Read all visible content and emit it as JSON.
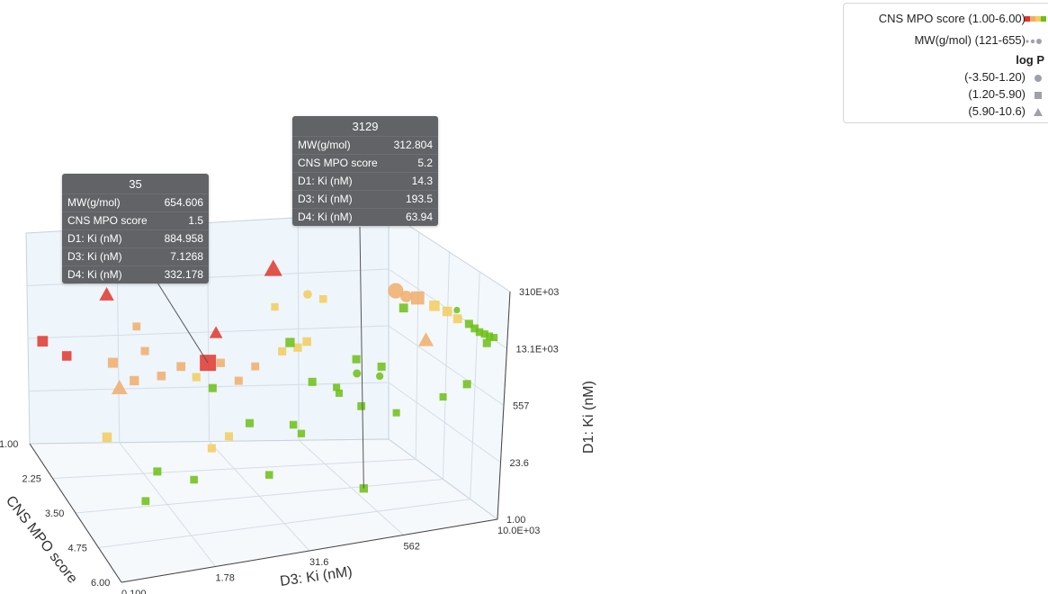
{
  "chart_data": {
    "type": "scatter",
    "axes": {
      "x": {
        "label": "D3: Ki (nM)",
        "scale": "log",
        "ticks": [
          "0.100",
          "1.78",
          "31.6",
          "562",
          "10.0E+03"
        ]
      },
      "y": {
        "label": "CNS MPO score",
        "range": [
          1.0,
          6.0
        ],
        "ticks": [
          "1.00",
          "2.25",
          "3.50",
          "4.75",
          "6.00"
        ]
      },
      "z": {
        "label": "D1: Ki (nM)",
        "scale": "log",
        "ticks": [
          "1.00",
          "23.6",
          "557",
          "13.1E+03",
          "310E+03"
        ]
      }
    },
    "legend": {
      "color": {
        "label": "CNS MPO score (1.00-6.00)",
        "colors": [
          "#e0352b",
          "#f0ad69",
          "#f2cd5a",
          "#6cbf13"
        ]
      },
      "size": {
        "label": "MW(g/mol) (121-655)"
      },
      "shape_title": "log P",
      "shapes": [
        {
          "label": "(-3.50-1.20)",
          "shape": "circle"
        },
        {
          "label": "(1.20-5.90)",
          "shape": "square"
        },
        {
          "label": "(5.90-10.6)",
          "shape": "triangle"
        }
      ]
    },
    "tooltips": [
      {
        "id": "35",
        "rows": [
          {
            "k": "MW(g/mol)",
            "v": "654.606"
          },
          {
            "k": "CNS MPO score",
            "v": "1.5"
          },
          {
            "k": "D1: Ki (nM)",
            "v": "884.958"
          },
          {
            "k": "D3: Ki (nM)",
            "v": "7.1268"
          },
          {
            "k": "D4: Ki (nM)",
            "v": "332.178"
          }
        ]
      },
      {
        "id": "3129",
        "rows": [
          {
            "k": "MW(g/mol)",
            "v": "312.804"
          },
          {
            "k": "CNS MPO score",
            "v": "5.2"
          },
          {
            "k": "D1: Ki (nM)",
            "v": "14.3"
          },
          {
            "k": "D3: Ki (nM)",
            "v": "193.5"
          },
          {
            "k": "D4: Ki (nM)",
            "v": "63.94"
          }
        ]
      }
    ],
    "points": [
      {
        "x": 7.1268,
        "y": 1.5,
        "z": 884.958,
        "mw": 654.606,
        "shape": "square"
      },
      {
        "x": 193.5,
        "y": 5.2,
        "z": 14.3,
        "mw": 312.804,
        "shape": "square"
      },
      {
        "x": 3.0,
        "y": 1.2,
        "z": 250000,
        "mw": 520,
        "shape": "triangle"
      },
      {
        "x": 40,
        "y": 1.1,
        "z": 280000,
        "mw": 540,
        "shape": "triangle"
      },
      {
        "x": 0.6,
        "y": 1.4,
        "z": 20000,
        "mw": 430,
        "shape": "triangle"
      },
      {
        "x": 9,
        "y": 1.4,
        "z": 5000,
        "mw": 380,
        "shape": "triangle"
      },
      {
        "x": 0.5,
        "y": 2.6,
        "z": 300,
        "mw": 470,
        "shape": "triangle"
      },
      {
        "x": 1500,
        "y": 2.6,
        "z": 20000,
        "mw": 450,
        "shape": "triangle"
      },
      {
        "x": 700,
        "y": 2.3,
        "z": 250000,
        "mw": 580,
        "shape": "circle"
      },
      {
        "x": 900,
        "y": 2.5,
        "z": 200000,
        "mw": 420,
        "shape": "circle"
      },
      {
        "x": 60,
        "y": 3.2,
        "z": 160000,
        "mw": 300,
        "shape": "circle"
      },
      {
        "x": 150,
        "y": 5.4,
        "z": 6000,
        "mw": 280,
        "shape": "circle"
      },
      {
        "x": 300,
        "y": 5.3,
        "z": 5000,
        "mw": 250,
        "shape": "circle"
      },
      {
        "x": 3000,
        "y": 4.6,
        "z": 160000,
        "mw": 210,
        "shape": "circle"
      },
      {
        "x": 1200,
        "y": 2.6,
        "z": 200000,
        "mw": 520,
        "shape": "square"
      },
      {
        "x": 1800,
        "y": 3.0,
        "z": 150000,
        "mw": 400,
        "shape": "square"
      },
      {
        "x": 2500,
        "y": 3.2,
        "z": 120000,
        "mw": 360,
        "shape": "square"
      },
      {
        "x": 3200,
        "y": 3.8,
        "z": 90000,
        "mw": 330,
        "shape": "square"
      },
      {
        "x": 4200,
        "y": 4.9,
        "z": 80000,
        "mw": 300,
        "shape": "square"
      },
      {
        "x": 4900,
        "y": 5.2,
        "z": 65000,
        "mw": 290,
        "shape": "square"
      },
      {
        "x": 5600,
        "y": 5.5,
        "z": 55000,
        "mw": 280,
        "shape": "square"
      },
      {
        "x": 6500,
        "y": 5.6,
        "z": 50000,
        "mw": 270,
        "shape": "square"
      },
      {
        "x": 7500,
        "y": 5.7,
        "z": 45000,
        "mw": 265,
        "shape": "square"
      },
      {
        "x": 8600,
        "y": 5.8,
        "z": 42000,
        "mw": 260,
        "shape": "square"
      },
      {
        "x": 7000,
        "y": 5.4,
        "z": 30000,
        "mw": 300,
        "shape": "square"
      },
      {
        "x": 600,
        "y": 5.3,
        "z": 180000,
        "mw": 330,
        "shape": "square"
      },
      {
        "x": 300,
        "y": 5.6,
        "z": 9000,
        "mw": 300,
        "shape": "square"
      },
      {
        "x": 4000,
        "y": 5.0,
        "z": 3000,
        "mw": 300,
        "shape": "square"
      },
      {
        "x": 0.12,
        "y": 1.4,
        "z": 800,
        "mw": 410,
        "shape": "square"
      },
      {
        "x": 0.2,
        "y": 1.6,
        "z": 500,
        "mw": 360,
        "shape": "square"
      },
      {
        "x": 0.5,
        "y": 2.2,
        "z": 800,
        "mw": 380,
        "shape": "square"
      },
      {
        "x": 0.8,
        "y": 2.4,
        "z": 400,
        "mw": 350,
        "shape": "square"
      },
      {
        "x": 1.1,
        "y": 2.3,
        "z": 2000,
        "mw": 300,
        "shape": "square"
      },
      {
        "x": 1.5,
        "y": 2.6,
        "z": 700,
        "mw": 320,
        "shape": "square"
      },
      {
        "x": 2.6,
        "y": 2.5,
        "z": 1200,
        "mw": 330,
        "shape": "square"
      },
      {
        "x": 3.5,
        "y": 2.8,
        "z": 900,
        "mw": 300,
        "shape": "square"
      },
      {
        "x": 1.0,
        "y": 2.0,
        "z": 6000,
        "mw": 290,
        "shape": "square"
      },
      {
        "x": 8.0,
        "y": 2.2,
        "z": 1500,
        "mw": 310,
        "shape": "square"
      },
      {
        "x": 12,
        "y": 2.4,
        "z": 700,
        "mw": 300,
        "shape": "square"
      },
      {
        "x": 17,
        "y": 2.7,
        "z": 2000,
        "mw": 290,
        "shape": "square"
      },
      {
        "x": 25,
        "y": 3.2,
        "z": 70000,
        "mw": 270,
        "shape": "square"
      },
      {
        "x": 32,
        "y": 3.0,
        "z": 6000,
        "mw": 300,
        "shape": "square"
      },
      {
        "x": 45,
        "y": 3.3,
        "z": 9000,
        "mw": 310,
        "shape": "square"
      },
      {
        "x": 55,
        "y": 3.5,
        "z": 14000,
        "mw": 320,
        "shape": "square"
      },
      {
        "x": 80,
        "y": 3.8,
        "z": 160000,
        "mw": 280,
        "shape": "square"
      },
      {
        "x": 0.3,
        "y": 3.0,
        "z": 30,
        "mw": 360,
        "shape": "square"
      },
      {
        "x": 0.7,
        "y": 4.2,
        "z": 20,
        "mw": 300,
        "shape": "square"
      },
      {
        "x": 0.4,
        "y": 4.7,
        "z": 8,
        "mw": 290,
        "shape": "square"
      },
      {
        "x": 4,
        "y": 3.6,
        "z": 40,
        "mw": 300,
        "shape": "square"
      },
      {
        "x": 6,
        "y": 3.8,
        "z": 90,
        "mw": 300,
        "shape": "square"
      },
      {
        "x": 2.2,
        "y": 3.9,
        "z": 10,
        "mw": 280,
        "shape": "square"
      },
      {
        "x": 14,
        "y": 4.7,
        "z": 25,
        "mw": 280,
        "shape": "square"
      },
      {
        "x": 40,
        "y": 4.2,
        "z": 150,
        "mw": 270,
        "shape": "square"
      },
      {
        "x": 120,
        "y": 4.0,
        "z": 1200,
        "mw": 260,
        "shape": "square"
      },
      {
        "x": 200,
        "y": 4.6,
        "z": 800,
        "mw": 290,
        "shape": "square"
      },
      {
        "x": 3.2,
        "y": 4.3,
        "z": 1500,
        "mw": 300,
        "shape": "square"
      },
      {
        "x": 8.5,
        "y": 4.5,
        "z": 300,
        "mw": 300,
        "shape": "square"
      },
      {
        "x": 25,
        "y": 5.1,
        "z": 400,
        "mw": 280,
        "shape": "square"
      },
      {
        "x": 90,
        "y": 5.0,
        "z": 2500,
        "mw": 260,
        "shape": "square"
      },
      {
        "x": 500,
        "y": 5.2,
        "z": 700,
        "mw": 260,
        "shape": "square"
      },
      {
        "x": 2000,
        "y": 5.0,
        "z": 1500,
        "mw": 260,
        "shape": "square"
      },
      {
        "x": 40,
        "y": 5.4,
        "z": 4000,
        "mw": 300,
        "shape": "square"
      },
      {
        "x": 150,
        "y": 5.3,
        "z": 12000,
        "mw": 300,
        "shape": "square"
      },
      {
        "x": 20,
        "y": 5.5,
        "z": 30000,
        "mw": 350,
        "shape": "square"
      }
    ]
  }
}
